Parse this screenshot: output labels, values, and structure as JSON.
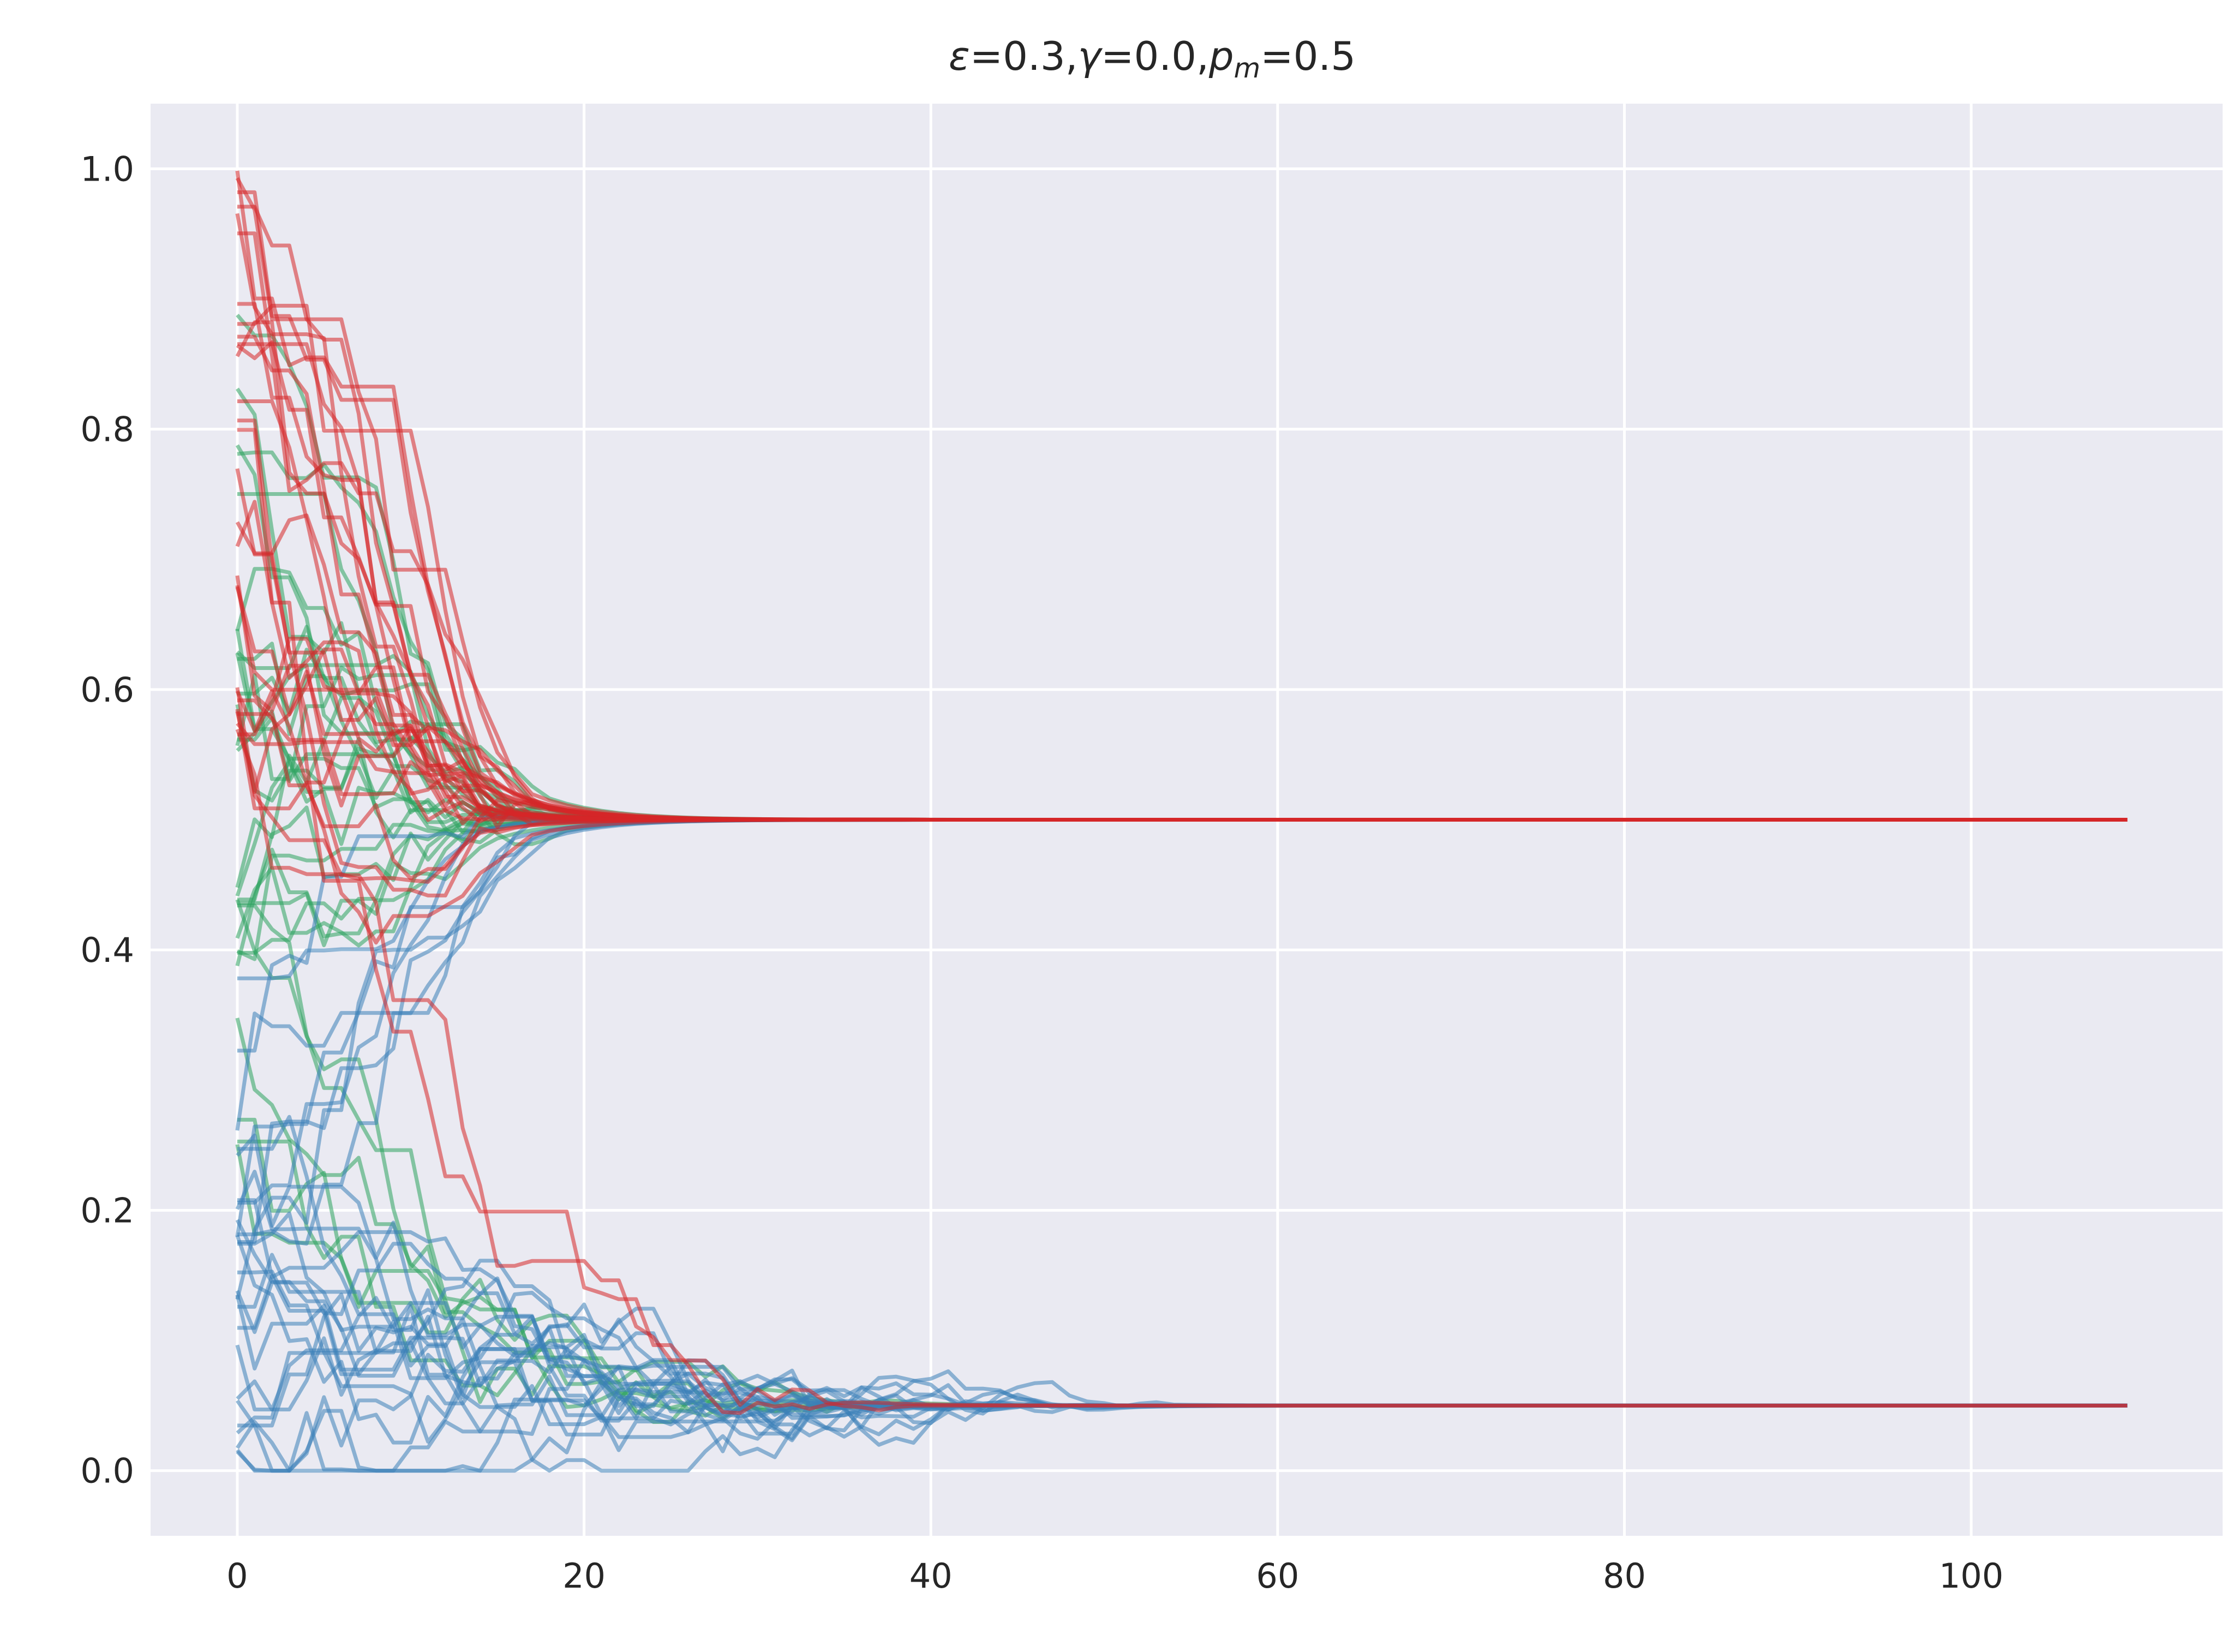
{
  "chart_data": {
    "type": "line",
    "title": "ε=0.3,γ=0.0,p_m=0.5",
    "title_parts": {
      "eps": "ε",
      "eq1": "=0.3,",
      "gamma": "γ",
      "eq2": "=0.0,",
      "p": "p",
      "m": "m",
      "eq3": "=0.5"
    },
    "xlabel": "",
    "ylabel": "",
    "xlim": [
      -5,
      114.5
    ],
    "ylim": [
      -0.05,
      1.05
    ],
    "x_ticks": [
      0,
      20,
      40,
      60,
      80,
      100
    ],
    "x_tick_labels": [
      "0",
      "20",
      "40",
      "60",
      "80",
      "100"
    ],
    "y_ticks": [
      0.0,
      0.2,
      0.4,
      0.6,
      0.8,
      1.0
    ],
    "y_tick_labels": [
      "0.0",
      "0.2",
      "0.4",
      "0.6",
      "0.8",
      "1.0"
    ],
    "grid": true,
    "legend": "none",
    "x_range": [
      0,
      109
    ],
    "colors": {
      "background": "#eaeaf2",
      "grid": "#ffffff",
      "green": "#2ca25f",
      "blue": "#3a80b8",
      "red": "#d62728",
      "text": "#262626"
    },
    "series": [
      {
        "color": "green",
        "groups": [
          {
            "count": 14,
            "start_range": [
              0.35,
              0.66
            ],
            "converge_x": [
              14,
              20
            ],
            "final": 0.5
          },
          {
            "count": 9,
            "start_range": [
              0.55,
              0.9
            ],
            "converge_x": [
              14,
              20
            ],
            "final": 0.5
          },
          {
            "count": 6,
            "start_range": [
              0.25,
              0.45
            ],
            "converge_x": [
              30,
              48
            ],
            "final": 0.05
          }
        ]
      },
      {
        "color": "blue",
        "groups": [
          {
            "count": 20,
            "start_range": [
              0.01,
              0.28
            ],
            "converge_x": [
              30,
              55
            ],
            "final": 0.05
          },
          {
            "count": 8,
            "start_range": [
              0.1,
              0.4
            ],
            "converge_x": [
              14,
              20
            ],
            "final": 0.5
          }
        ]
      },
      {
        "color": "red",
        "groups": [
          {
            "count": 28,
            "start_range": [
              0.55,
              1.0
            ],
            "converge_x": [
              14,
              20
            ],
            "final": 0.5
          },
          {
            "count": 2,
            "start_range": [
              0.6,
              0.8
            ],
            "converge_x": [
              30,
              45
            ],
            "final": 0.05
          }
        ]
      }
    ]
  }
}
